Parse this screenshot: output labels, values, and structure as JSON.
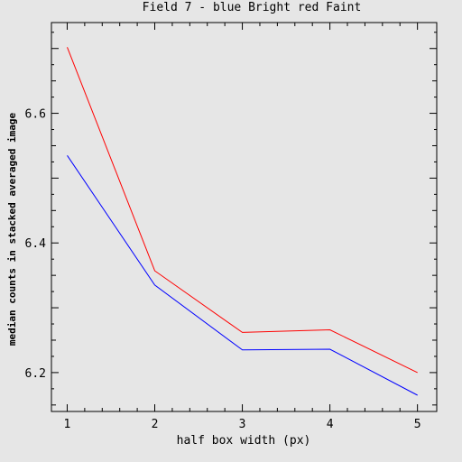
{
  "chart_data": {
    "type": "line",
    "title": "Field 7  -  blue Bright  red Faint",
    "xlabel": "half box width (px)",
    "ylabel": "median counts in stacked averaged image",
    "x": [
      1,
      2,
      3,
      4,
      5
    ],
    "xlim": [
      0.82,
      5.22
    ],
    "ylim": [
      6.14,
      6.74
    ],
    "xticks": [
      1,
      2,
      3,
      4,
      5
    ],
    "xtick_labels": [
      "1",
      "2",
      "3",
      "4",
      "5"
    ],
    "yticks": [
      6.2,
      6.4,
      6.6
    ],
    "ytick_labels": [
      "6.2",
      "6.4",
      "6.6"
    ],
    "grid": false,
    "series": [
      {
        "color": "#0000ff",
        "values": [
          6.535,
          6.335,
          6.235,
          6.236,
          6.165
        ]
      },
      {
        "color": "#ff0000",
        "values": [
          6.702,
          6.357,
          6.262,
          6.266,
          6.2
        ]
      }
    ]
  },
  "colors": {
    "background": "#e6e6e6",
    "axis": "#000000"
  }
}
